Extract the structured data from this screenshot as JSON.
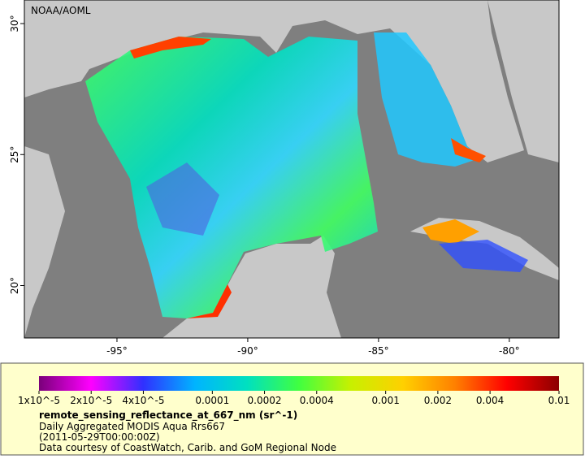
{
  "map": {
    "label": "NOAA/AOML",
    "xlim": [
      -98.54,
      -78.1
    ],
    "ylim": [
      18,
      30.9
    ],
    "xticks": [
      {
        "value": -95,
        "label": "-95°"
      },
      {
        "value": -90,
        "label": "-90°"
      },
      {
        "value": -85,
        "label": "-85°"
      },
      {
        "value": -80,
        "label": "-80°"
      }
    ],
    "yticks": [
      {
        "value": 20,
        "label": "20°"
      },
      {
        "value": 25,
        "label": "25°"
      },
      {
        "value": 30,
        "label": "30°"
      }
    ]
  },
  "colorbar": {
    "log_scale": true,
    "lim": [
      1e-05,
      0.01
    ],
    "colors": [
      "#7a007a",
      "#ff00ff",
      "#3030ff",
      "#00b4ff",
      "#00e0c0",
      "#40ff40",
      "#c8f000",
      "#ffd000",
      "#ff8000",
      "#ff0000",
      "#8b0000"
    ],
    "ticks": [
      {
        "value": 1e-05,
        "label": "1x10^-5"
      },
      {
        "value": 2e-05,
        "label": "2x10^-5"
      },
      {
        "value": 4e-05,
        "label": "4x10^-5"
      },
      0.0001,
      0.0002,
      0.0004,
      0.001,
      0.002,
      0.004,
      0.01
    ]
  },
  "legend": {
    "variable": "remote_sensing_reflectance_at_667_nm (sr^-1)",
    "dataset": "Daily Aggregated MODIS Aqua Rrs667",
    "time": "(2011-05-29T00:00:00Z)",
    "credit": "Data courtesy of CoastWatch, Carib. and GoM Regional Node"
  }
}
